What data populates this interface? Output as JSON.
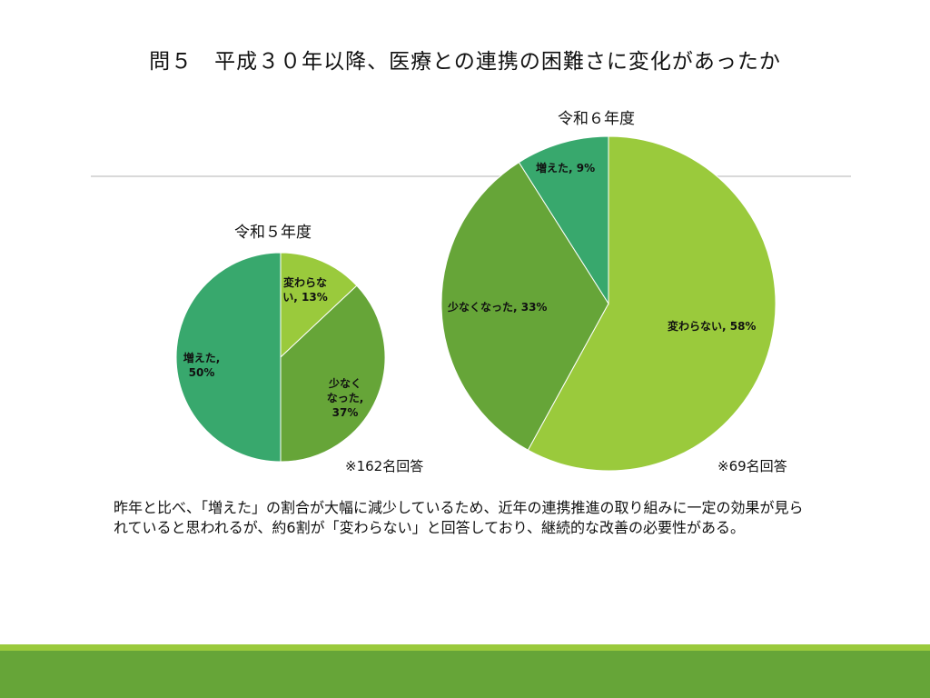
{
  "title": "問５　平成３０年以降、医療との連携の困難さに変化があったか",
  "summary": "昨年と比べ、「増えた」の割合が大幅に減少しているため、近年の連携推進の取り組みに一定の効果が見られていると思われるが、約6割が「変わらない」と回答しており、継続的な改善の必要性がある。",
  "colors": {
    "unchanged": "#9aca3c",
    "decreased": "#66a538",
    "increased": "#38a86d",
    "band_light": "#9aca3c",
    "band_dark": "#66a538"
  },
  "chart_data": [
    {
      "type": "pie",
      "title": "令和５年度",
      "note": "※162名回答",
      "slices": [
        {
          "label": "変わらない",
          "value": 13,
          "text": "変わらな\nい, 13%"
        },
        {
          "label": "少なくなった",
          "value": 37,
          "text": "少なく\nなった,\n37%"
        },
        {
          "label": "増えた",
          "value": 50,
          "text": "増えた,\n50%"
        }
      ]
    },
    {
      "type": "pie",
      "title": "令和６年度",
      "note": "※69名回答",
      "slices": [
        {
          "label": "変わらない",
          "value": 58,
          "text": "変わらない, 58%"
        },
        {
          "label": "少なくなった",
          "value": 33,
          "text": "少なくなった, 33%"
        },
        {
          "label": "増えた",
          "value": 9,
          "text": "増えた, 9%"
        }
      ]
    }
  ]
}
